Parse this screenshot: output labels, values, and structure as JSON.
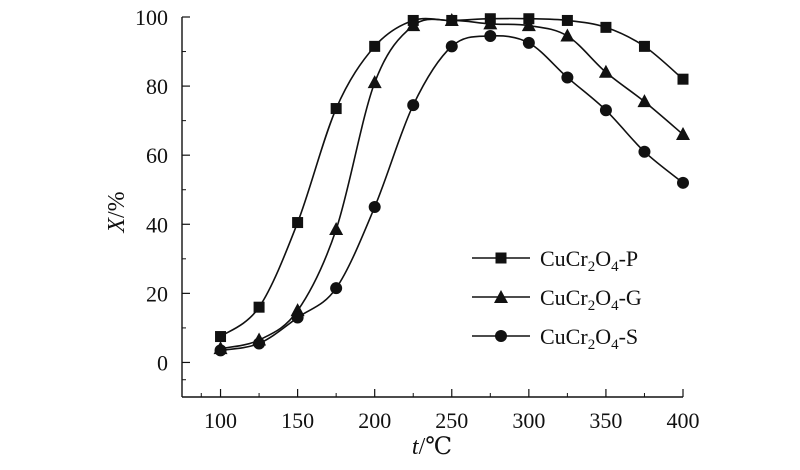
{
  "chart_data": {
    "type": "line",
    "x": [
      100,
      125,
      150,
      175,
      200,
      225,
      250,
      275,
      300,
      325,
      350,
      375,
      400
    ],
    "xlim": [
      75,
      400
    ],
    "ylim": [
      -10,
      100
    ],
    "xticks": [
      100,
      150,
      200,
      250,
      300,
      350,
      400
    ],
    "yticks": [
      0,
      20,
      40,
      60,
      80,
      100
    ],
    "xlabel": {
      "var": "t",
      "unit": "/℃"
    },
    "ylabel": {
      "var": "X",
      "unit": "/%"
    },
    "legend_position": "center-right",
    "grid": false,
    "series": [
      {
        "name": "CuCr2O4-P",
        "label_parts": {
          "base": "CuCr",
          "sub1": "2",
          "mid": "O",
          "sub2": "4",
          "suffix": "-P"
        },
        "marker": "square",
        "values": [
          7.5,
          16,
          40.5,
          73.5,
          91.5,
          99,
          99,
          99.5,
          99.5,
          99,
          97,
          91.5,
          82
        ]
      },
      {
        "name": "CuCr2O4-G",
        "label_parts": {
          "base": "CuCr",
          "sub1": "2",
          "mid": "O",
          "sub2": "4",
          "suffix": "-G"
        },
        "marker": "triangle",
        "values": [
          4,
          6.5,
          15,
          38.5,
          81,
          97.5,
          99,
          98,
          97.5,
          94.5,
          84,
          75.5,
          66
        ]
      },
      {
        "name": "CuCr2O4-S",
        "label_parts": {
          "base": "CuCr",
          "sub1": "2",
          "mid": "O",
          "sub2": "4",
          "suffix": "-S"
        },
        "marker": "circle",
        "values": [
          3.5,
          5.5,
          13,
          21.5,
          45,
          74.5,
          91.5,
          94.5,
          92.5,
          82.5,
          73,
          61,
          52
        ]
      }
    ],
    "colors": {
      "line": "#111111",
      "marker": "#111111"
    }
  }
}
